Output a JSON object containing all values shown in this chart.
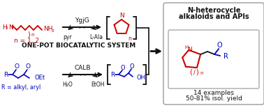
{
  "bg_color": "#ffffff",
  "red": "#cc0000",
  "blue": "#0000bb",
  "black": "#111111",
  "gray": "#888888",
  "title_top": "N-heterocycle",
  "title_mid": "alkaloids and APIs",
  "enzyme1": "YgjG",
  "enzyme2": "CALB",
  "label_pyr": "pyr",
  "label_lala": "L-Ala",
  "label_h2o": "H₂O",
  "label_etoh": "EtOH",
  "label_n": "n = 1, 2",
  "label_r": "R = alkyl, aryl",
  "label_system": "ONE-POT BIOCATALYTIC SYSTEM",
  "label_examples": "14 examples",
  "label_yield": "50-81% isol. yield",
  "fig_width": 3.78,
  "fig_height": 1.55,
  "dpi": 100
}
